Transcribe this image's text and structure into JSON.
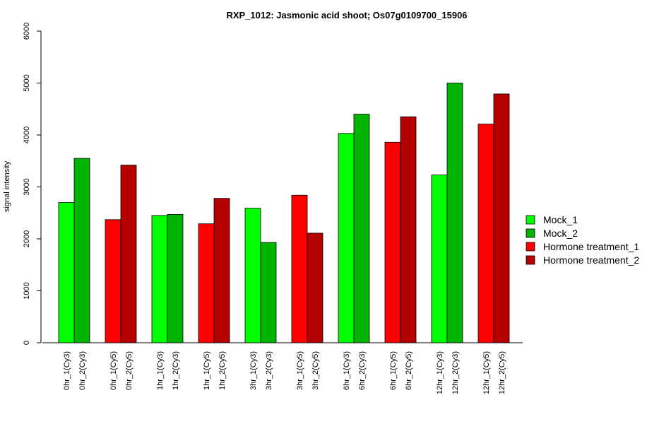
{
  "chart_data": {
    "type": "bar",
    "title": "RXP_1012: Jasmonic acid shoot; Os07g0109700_15906",
    "ylabel": "signal intensity",
    "xlabel": "",
    "ylim": [
      0,
      6000
    ],
    "yticks": [
      0,
      1000,
      2000,
      3000,
      4000,
      5000,
      6000
    ],
    "grid": false,
    "legend_position": "right",
    "series": [
      {
        "name": "Mock_1",
        "color": "#00ff00"
      },
      {
        "name": "Mock_2",
        "color": "#00b400"
      },
      {
        "name": "Hormone treatment_1",
        "color": "#ff0000"
      },
      {
        "name": "Hormone treatment_2",
        "color": "#b40000"
      }
    ],
    "bars": [
      {
        "label": "0hr_1(Cy3)",
        "value": 2700,
        "series": 0
      },
      {
        "label": "0hr_2(Cy3)",
        "value": 3550,
        "series": 1
      },
      {
        "label": "0hr_1(Cy5)",
        "value": 2370,
        "series": 2
      },
      {
        "label": "0hr_2(Cy5)",
        "value": 3420,
        "series": 3
      },
      {
        "label": "1hr_1(Cy3)",
        "value": 2450,
        "series": 0
      },
      {
        "label": "1hr_2(Cy3)",
        "value": 2470,
        "series": 1
      },
      {
        "label": "1hr_1(Cy5)",
        "value": 2290,
        "series": 2
      },
      {
        "label": "1hr_2(Cy5)",
        "value": 2780,
        "series": 3
      },
      {
        "label": "3hr_1(Cy3)",
        "value": 2590,
        "series": 0
      },
      {
        "label": "3hr_2(Cy3)",
        "value": 1930,
        "series": 1
      },
      {
        "label": "3hr_1(Cy5)",
        "value": 2840,
        "series": 2
      },
      {
        "label": "3hr_2(Cy5)",
        "value": 2110,
        "series": 3
      },
      {
        "label": "6hr_1(Cy3)",
        "value": 4030,
        "series": 0
      },
      {
        "label": "6hr_2(Cy3)",
        "value": 4400,
        "series": 1
      },
      {
        "label": "6hr_1(Cy5)",
        "value": 3860,
        "series": 2
      },
      {
        "label": "6hr_2(Cy5)",
        "value": 4350,
        "series": 3
      },
      {
        "label": "12hr_1(Cy3)",
        "value": 3230,
        "series": 0
      },
      {
        "label": "12hr_2(Cy3)",
        "value": 5000,
        "series": 1
      },
      {
        "label": "12hr_1(Cy5)",
        "value": 4210,
        "series": 2
      },
      {
        "label": "12hr_2(Cy5)",
        "value": 4790,
        "series": 3
      }
    ]
  }
}
